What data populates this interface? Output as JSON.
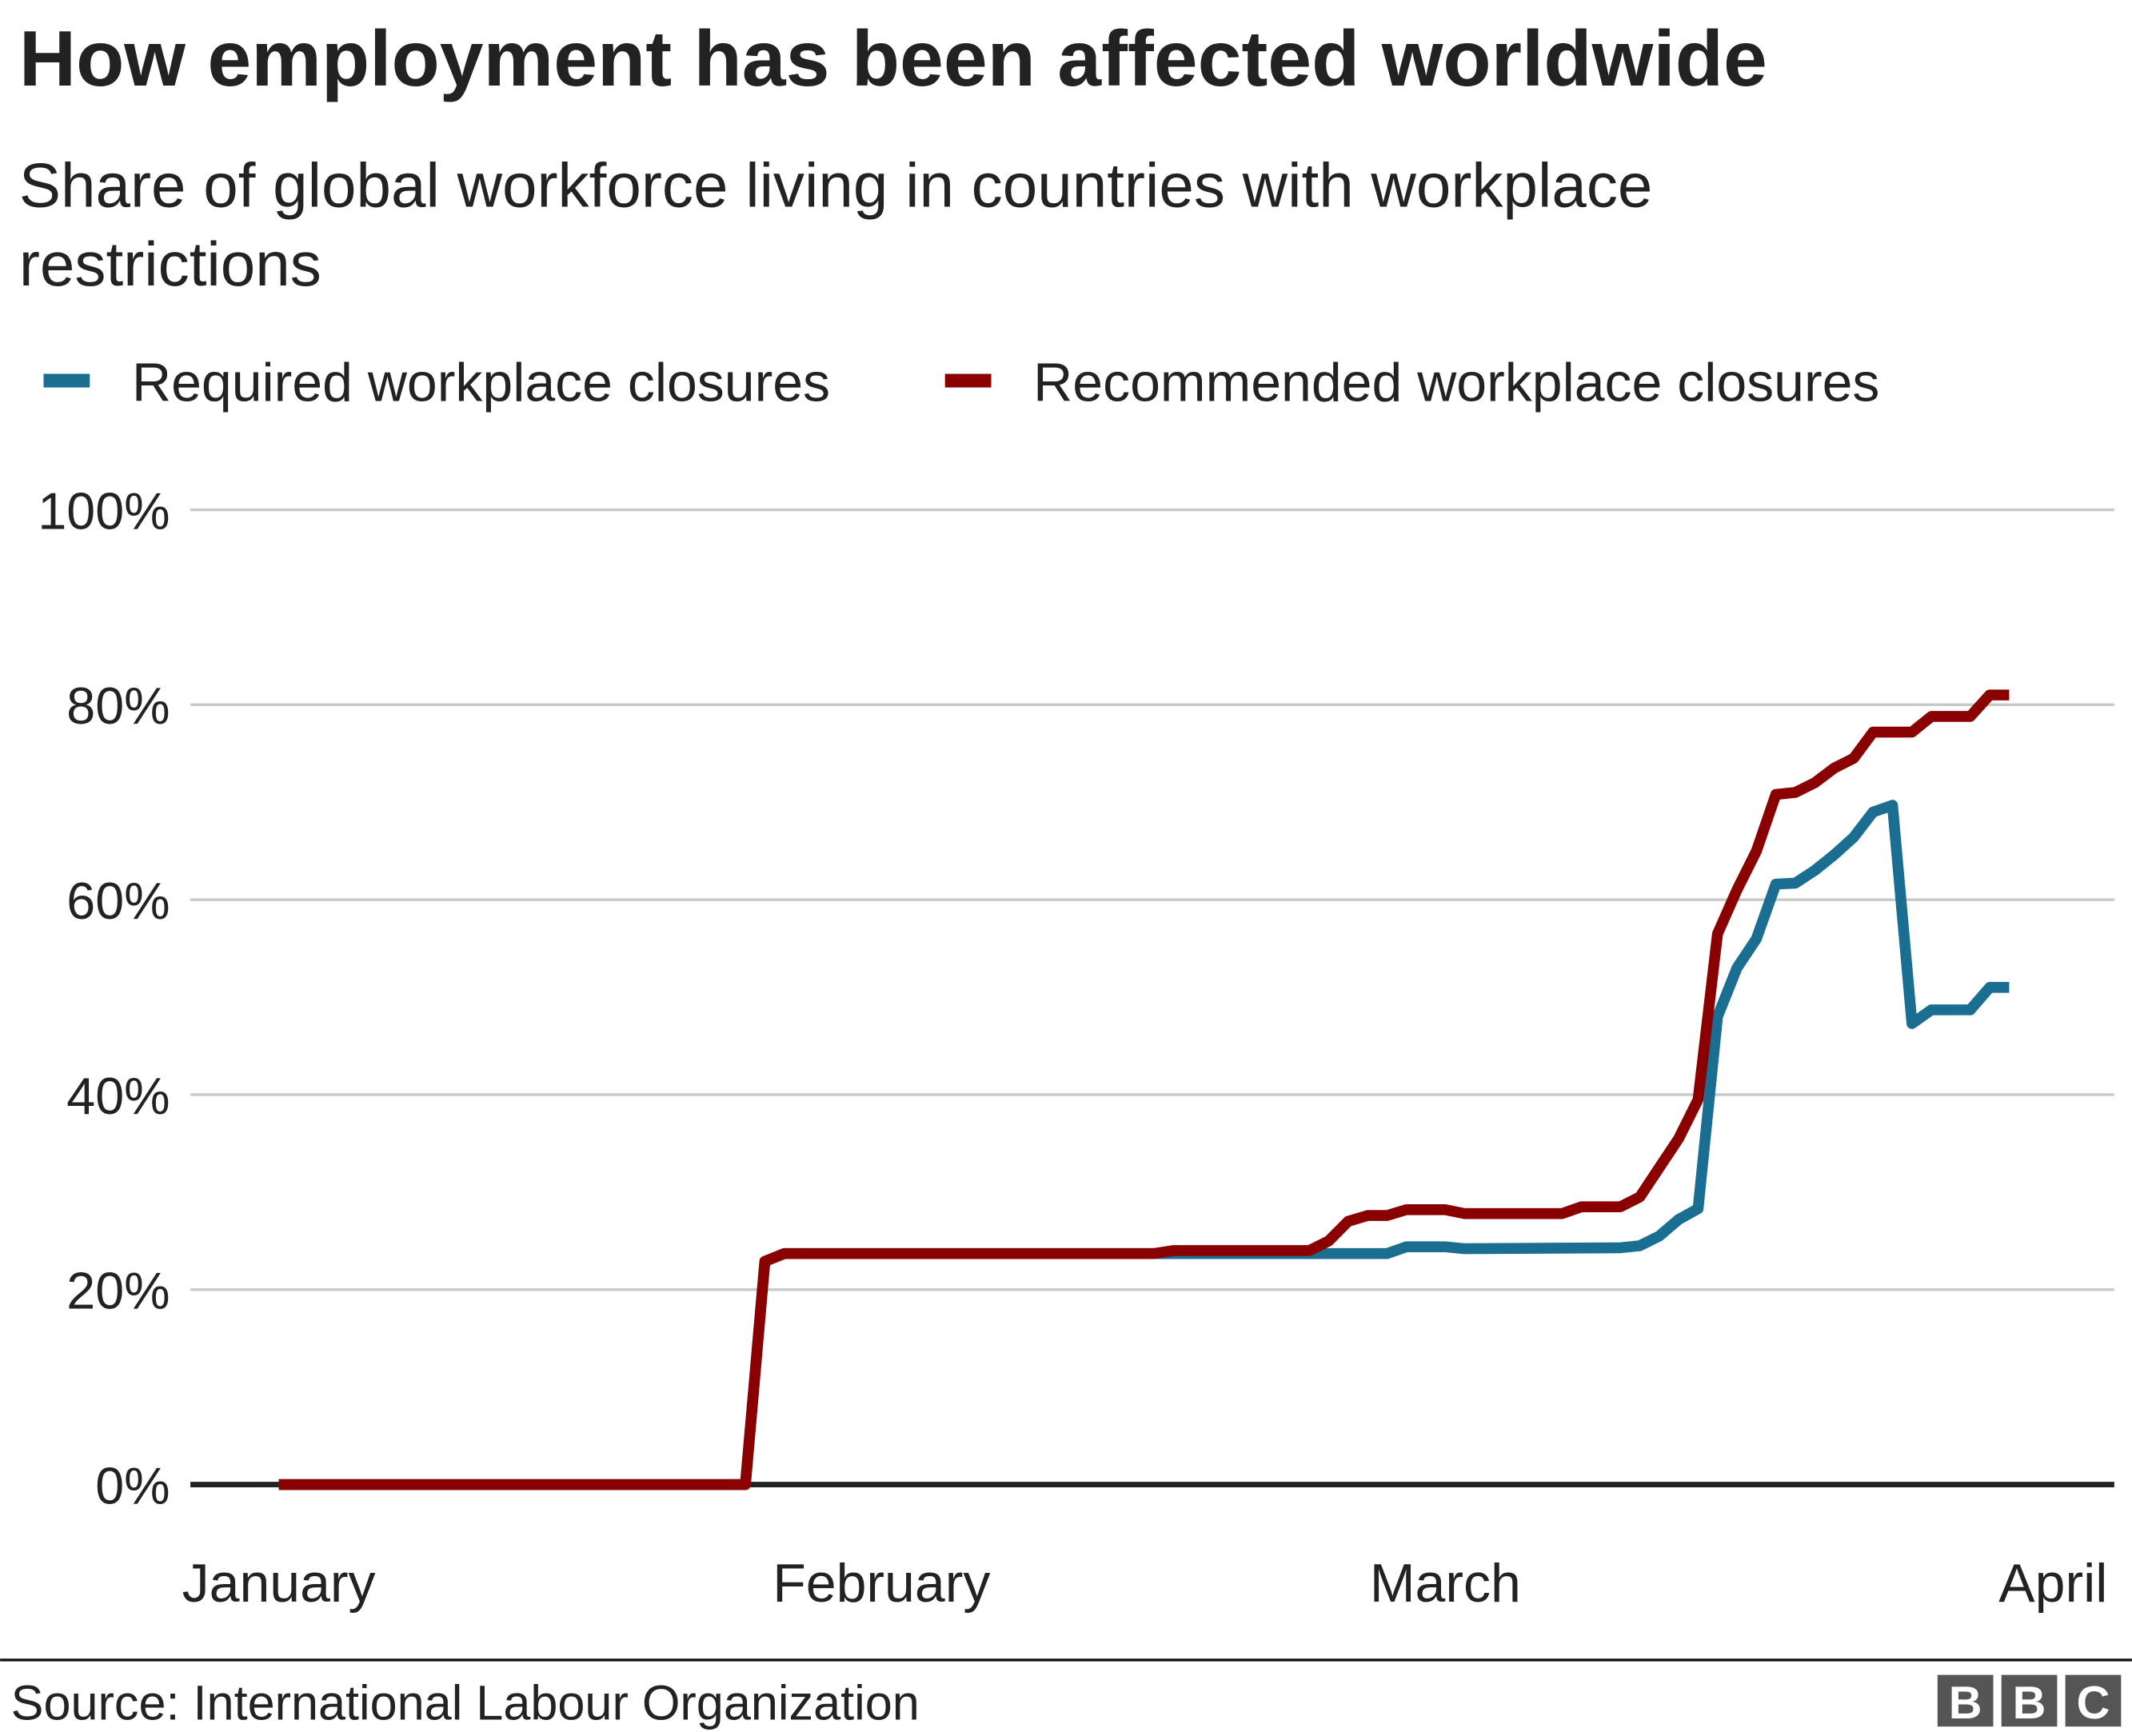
{
  "chart_data": {
    "type": "line",
    "title": "How employment has been affected worldwide",
    "subtitle_lines": [
      "Share of global workforce living in countries with workplace",
      "restrictions"
    ],
    "xlabel": "",
    "ylabel": "",
    "ylim": [
      0,
      100
    ],
    "y_ticks": [
      0,
      20,
      40,
      60,
      80,
      100
    ],
    "y_tick_labels": [
      "0%",
      "20%",
      "40%",
      "60%",
      "80%",
      "100%"
    ],
    "x_ticks": [
      "2020-01-01",
      "2020-02-01",
      "2020-03-01",
      "2020-04-01"
    ],
    "x_tick_labels": [
      "January",
      "February",
      "March",
      "April"
    ],
    "grid": "horizontal",
    "legend_placement": "top-left",
    "series": [
      {
        "name": "Required workplace closures",
        "color": "#1a6e91",
        "points": [
          [
            "2020-01-01",
            0
          ],
          [
            "2020-01-25",
            0
          ],
          [
            "2020-01-26",
            22.9
          ],
          [
            "2020-01-27",
            23.7
          ],
          [
            "2020-02-27",
            23.7
          ],
          [
            "2020-02-28",
            24.4
          ],
          [
            "2020-03-01",
            24.4
          ],
          [
            "2020-03-02",
            24.2
          ],
          [
            "2020-03-10",
            24.3
          ],
          [
            "2020-03-11",
            24.5
          ],
          [
            "2020-03-12",
            25.5
          ],
          [
            "2020-03-13",
            27.2
          ],
          [
            "2020-03-14",
            28.3
          ],
          [
            "2020-03-15",
            48
          ],
          [
            "2020-03-16",
            53
          ],
          [
            "2020-03-17",
            56
          ],
          [
            "2020-03-18",
            61.6
          ],
          [
            "2020-03-19",
            61.7
          ],
          [
            "2020-03-20",
            63
          ],
          [
            "2020-03-21",
            64.6
          ],
          [
            "2020-03-22",
            66.4
          ],
          [
            "2020-03-23",
            69
          ],
          [
            "2020-03-24",
            69.7
          ],
          [
            "2020-03-25",
            47.3
          ],
          [
            "2020-03-26",
            48.7
          ],
          [
            "2020-03-28",
            48.7
          ],
          [
            "2020-03-29",
            51
          ],
          [
            "2020-03-30",
            51
          ]
        ]
      },
      {
        "name": "Recommended workplace closures",
        "color": "#8a0000",
        "points": [
          [
            "2020-01-01",
            0
          ],
          [
            "2020-01-25",
            0
          ],
          [
            "2020-01-26",
            22.9
          ],
          [
            "2020-01-27",
            23.7
          ],
          [
            "2020-02-15",
            23.7
          ],
          [
            "2020-02-16",
            24
          ],
          [
            "2020-02-23",
            24
          ],
          [
            "2020-02-24",
            25
          ],
          [
            "2020-02-25",
            27
          ],
          [
            "2020-02-26",
            27.6
          ],
          [
            "2020-02-27",
            27.6
          ],
          [
            "2020-02-28",
            28.2
          ],
          [
            "2020-03-01",
            28.2
          ],
          [
            "2020-03-02",
            27.8
          ],
          [
            "2020-03-07",
            27.8
          ],
          [
            "2020-03-08",
            28.5
          ],
          [
            "2020-03-10",
            28.5
          ],
          [
            "2020-03-11",
            29.5
          ],
          [
            "2020-03-12",
            32.5
          ],
          [
            "2020-03-13",
            35.5
          ],
          [
            "2020-03-14",
            39.5
          ],
          [
            "2020-03-15",
            56.5
          ],
          [
            "2020-03-16",
            61
          ],
          [
            "2020-03-17",
            65
          ],
          [
            "2020-03-18",
            70.8
          ],
          [
            "2020-03-19",
            71
          ],
          [
            "2020-03-20",
            72
          ],
          [
            "2020-03-21",
            73.5
          ],
          [
            "2020-03-22",
            74.5
          ],
          [
            "2020-03-23",
            77.2
          ],
          [
            "2020-03-25",
            77.2
          ],
          [
            "2020-03-26",
            78.8
          ],
          [
            "2020-03-28",
            78.8
          ],
          [
            "2020-03-29",
            81
          ],
          [
            "2020-03-30",
            81
          ]
        ]
      }
    ]
  },
  "footer": {
    "source": "Source: International Labour Organization",
    "logo": "BBC"
  },
  "colors": {
    "grid": "#c8c8c8",
    "baseline": "#222222",
    "logo_box": "#555555"
  }
}
